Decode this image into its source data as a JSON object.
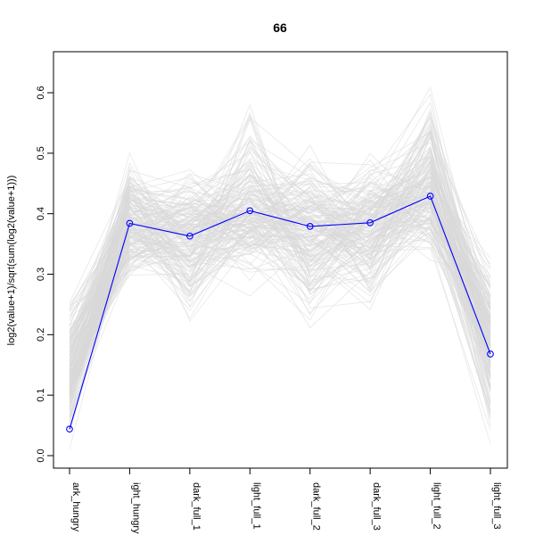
{
  "chart_data": {
    "type": "line",
    "title": "66",
    "xlabel": "",
    "ylabel": "log2(value+1)/sqrt(sum(log2(value+1)))",
    "categories": [
      "dark_hungry",
      "light_hungry",
      "dark_full_1",
      "light_full_1",
      "dark_full_2",
      "dark_full_3",
      "light_full_2",
      "light_full_3"
    ],
    "category_labels_visible": [
      "ark_hungry",
      "ight_hungry",
      "dark_full_1",
      "light_full_1",
      "dark_full_2",
      "dark_full_3",
      "light_full_2",
      "light_full_3"
    ],
    "yticks": [
      "0.0",
      "0.1",
      "0.2",
      "0.3",
      "0.4",
      "0.5",
      "0.6"
    ],
    "ylim": [
      -0.02,
      0.66
    ],
    "grid": false,
    "legend": "none",
    "highlight_series": {
      "values": [
        0.044,
        0.384,
        0.363,
        0.405,
        0.379,
        0.385,
        0.429,
        0.168
      ],
      "color": "#0000ff"
    },
    "background_series": {
      "color": "#d9d9d9",
      "count": 180,
      "values_by_category": {
        "min": [
          0.0,
          0.27,
          0.15,
          0.26,
          0.18,
          0.18,
          0.27,
          0.0
        ],
        "max": [
          0.32,
          0.52,
          0.5,
          0.61,
          0.53,
          0.52,
          0.64,
          0.36
        ],
        "mean": [
          0.13,
          0.38,
          0.36,
          0.4,
          0.38,
          0.38,
          0.43,
          0.19
        ]
      }
    }
  }
}
